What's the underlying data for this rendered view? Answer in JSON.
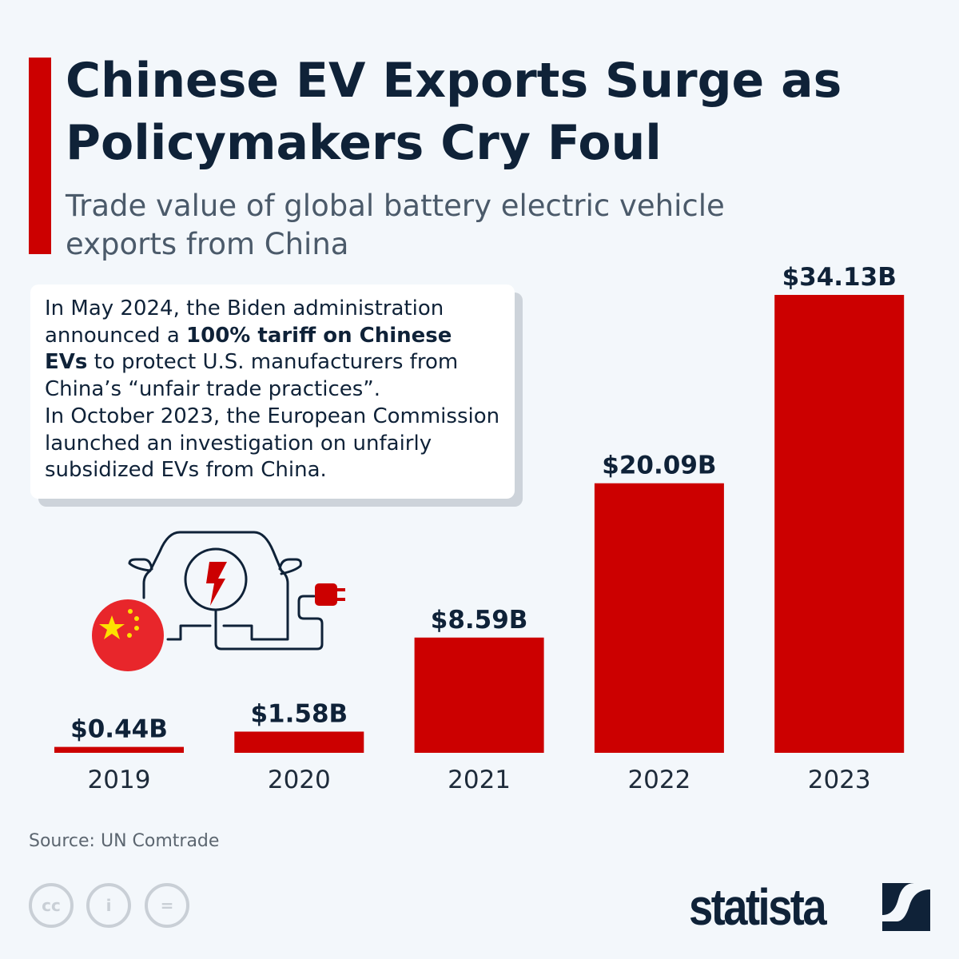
{
  "title": "Chinese EV Exports Surge as Policymakers Cry Foul",
  "subtitle": "Trade value of global battery electric vehicle exports from China",
  "note": {
    "p1_pre": "In May 2024, the Biden administration announced a ",
    "p1_bold": "100% tariff on Chinese EVs",
    "p1_post": " to protect U.S. manufacturers from China’s “unfair trade practices”.",
    "p2": "In October 2023, the European Commission launched an investigation on unfairly subsidized EVs from China."
  },
  "source": "Source: UN Comtrade",
  "logo": "statista",
  "colors": {
    "bar": "#cc0000",
    "text": "#0f2238",
    "background": "#f3f7fb"
  },
  "chart_data": {
    "type": "bar",
    "categories": [
      "2019",
      "2020",
      "2021",
      "2022",
      "2023"
    ],
    "values": [
      0.44,
      1.58,
      8.59,
      20.09,
      34.13
    ],
    "data_labels": [
      "$0.44B",
      "$1.58B",
      "$8.59B",
      "$20.09B",
      "$34.13B"
    ],
    "unit": "USD billions",
    "ylim": [
      0,
      34.13
    ],
    "grid": false
  }
}
